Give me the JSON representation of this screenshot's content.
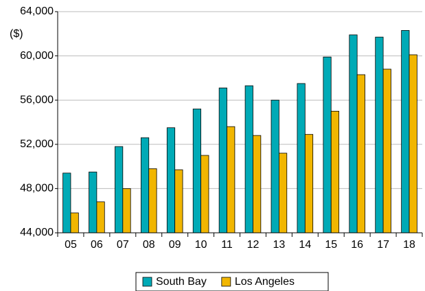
{
  "chart_data": {
    "type": "bar",
    "unit": "($)",
    "categories": [
      "05",
      "06",
      "07",
      "08",
      "09",
      "10",
      "11",
      "12",
      "13",
      "14",
      "15",
      "16",
      "17",
      "18"
    ],
    "series": [
      {
        "name": "South Bay",
        "color": "#00aab6",
        "values": [
          49400,
          49500,
          51800,
          52600,
          53500,
          55200,
          57100,
          57300,
          56000,
          57500,
          59900,
          61900,
          61700,
          62300
        ]
      },
      {
        "name": "Los Angeles",
        "color": "#f1b600",
        "values": [
          45800,
          46800,
          48000,
          49800,
          49700,
          51000,
          53600,
          52800,
          51200,
          52900,
          55000,
          58300,
          58800,
          60100
        ]
      }
    ],
    "ylim": [
      44000,
      64000
    ],
    "yticks": [
      {
        "value": 44000,
        "label": "44,000"
      },
      {
        "value": 48000,
        "label": "48,000"
      },
      {
        "value": 52000,
        "label": "52,000"
      },
      {
        "value": 56000,
        "label": "56,000"
      },
      {
        "value": 60000,
        "label": "60,000"
      },
      {
        "value": 64000,
        "label": "64,000"
      }
    ],
    "grid": true,
    "legend": "bottom"
  }
}
